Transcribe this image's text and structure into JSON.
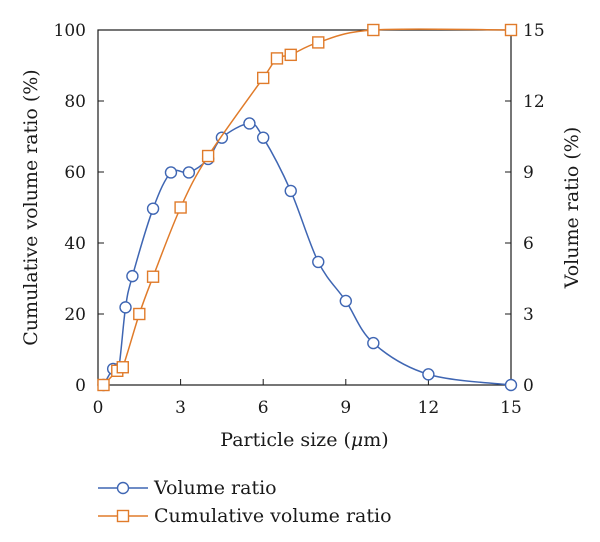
{
  "chart_data": {
    "type": "line",
    "xlabel_prefix": "Particle size (",
    "xlabel_unit_symbol": "μ",
    "xlabel_suffix": "m)",
    "ylabel_left": "Cumulative volume ratio (%)",
    "ylabel_right": "Volume ratio (%)",
    "xlim": [
      0,
      15
    ],
    "ylim_left": [
      0,
      100
    ],
    "ylim_right": [
      0,
      15
    ],
    "x_ticks": [
      "0",
      "3",
      "6",
      "9",
      "12",
      "15"
    ],
    "y_left_ticks": [
      "0",
      "20",
      "40",
      "60",
      "80",
      "100"
    ],
    "y_right_ticks": [
      "0",
      "3",
      "6",
      "9",
      "12",
      "15"
    ],
    "legend_position": "bottom",
    "grid": false,
    "series": [
      {
        "name": "Volume ratio",
        "axis": "right",
        "marker": "circle",
        "color": "#3f66b3",
        "x": [
          0.2,
          0.55,
          0.75,
          1.0,
          1.25,
          2.0,
          2.65,
          3.3,
          4.0,
          4.5,
          5.5,
          6.0,
          7.0,
          8.0,
          9.0,
          10.0,
          12.0,
          15.0
        ],
        "y": [
          0,
          0.68,
          0.68,
          3.28,
          4.6,
          7.45,
          8.98,
          8.98,
          9.55,
          10.45,
          11.05,
          10.45,
          8.2,
          5.2,
          3.55,
          1.77,
          0.45,
          0
        ]
      },
      {
        "name": "Cumulative volume ratio",
        "axis": "left",
        "marker": "square",
        "color": "#e07b2a",
        "x": [
          0.2,
          0.7,
          0.9,
          1.5,
          2.0,
          3.0,
          4.0,
          6.0,
          6.5,
          7.0,
          8.0,
          10.0,
          15.0
        ],
        "y": [
          0,
          4,
          5,
          20,
          30.5,
          50,
          64.5,
          86.5,
          92,
          93,
          96.5,
          100,
          100
        ]
      }
    ]
  }
}
